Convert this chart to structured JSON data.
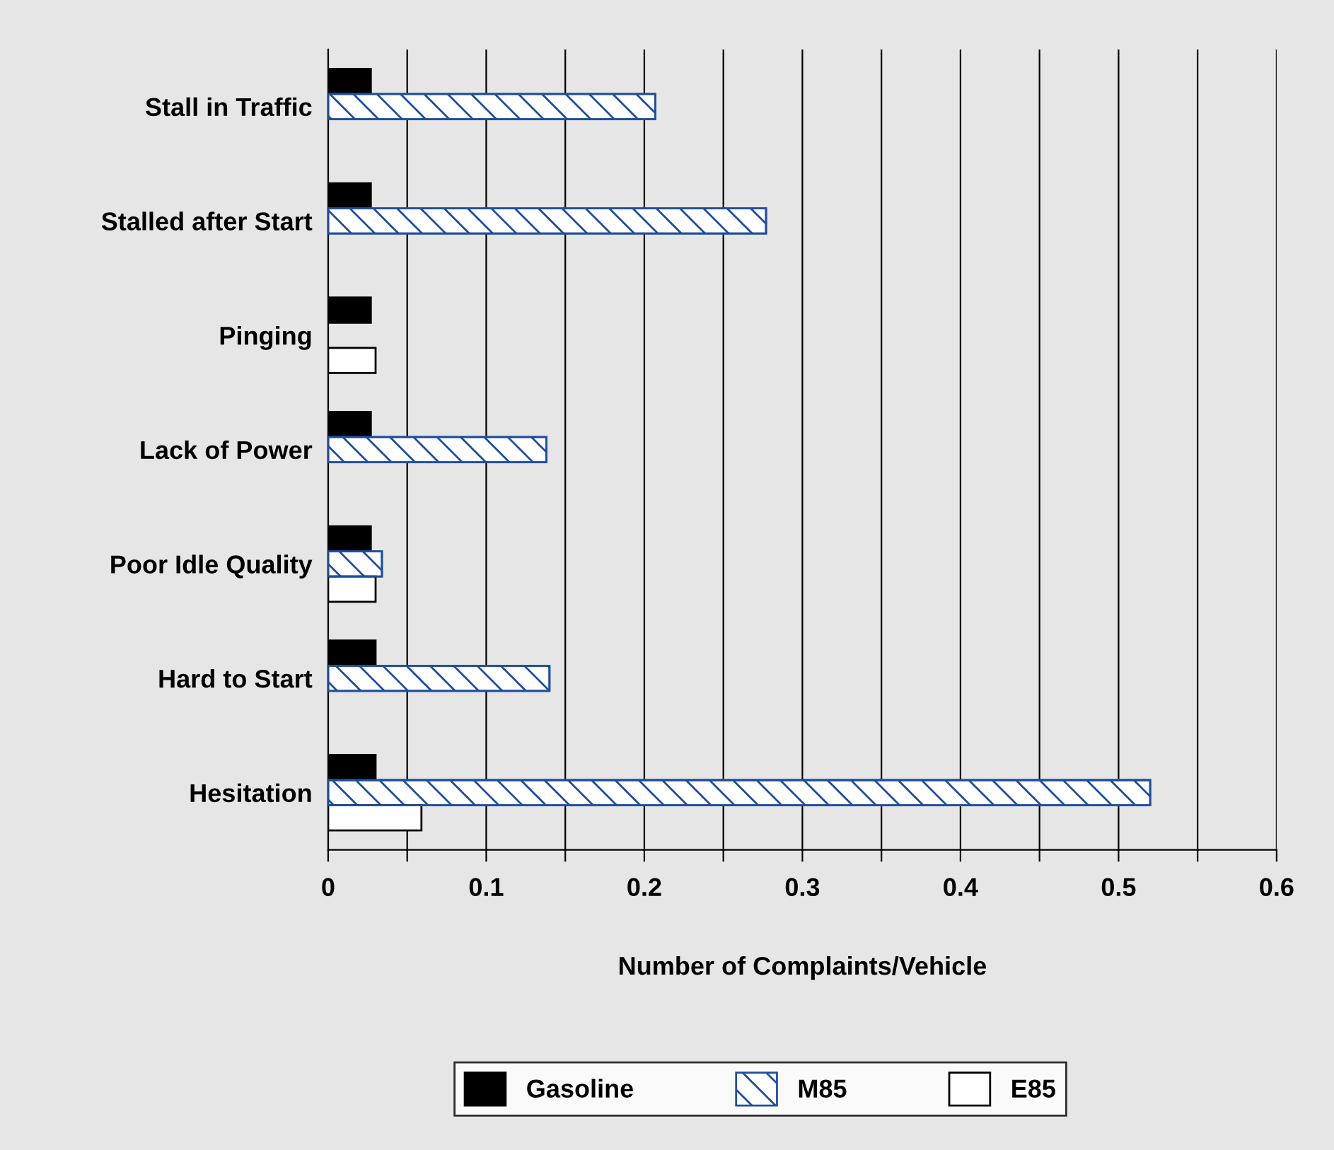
{
  "chart_data": {
    "type": "bar",
    "orientation": "horizontal",
    "xlabel": "Number of Complaints/Vehicle",
    "categories": [
      "Stall in Traffic",
      "Stalled after Start",
      "Pinging",
      "Lack of Power",
      "Poor Idle Quality",
      "Hard to Start",
      "Hesitation"
    ],
    "series": [
      {
        "name": "Gasoline",
        "color": "#000000",
        "values": [
          0.027,
          0.027,
          0.027,
          0.027,
          0.027,
          0.03,
          0.03
        ]
      },
      {
        "name": "M85",
        "color": "#1f4e9c",
        "values": [
          0.207,
          0.277,
          null,
          0.138,
          0.034,
          0.14,
          0.52
        ]
      },
      {
        "name": "E85",
        "color": "#ffffff",
        "values": [
          null,
          null,
          0.03,
          null,
          0.03,
          null,
          0.059
        ]
      }
    ],
    "xlim": [
      0,
      0.6
    ],
    "xticks": [
      0,
      {
        "value": 0.05,
        "label": null
      },
      0.1,
      {
        "value": 0.15,
        "label": null
      },
      0.2,
      {
        "value": 0.25,
        "label": null
      },
      0.3,
      {
        "value": 0.35,
        "label": null
      },
      0.4,
      {
        "value": 0.45,
        "label": null
      },
      0.5,
      {
        "value": 0.55,
        "label": null
      },
      0.6
    ],
    "grid": "x",
    "legend": "bottom"
  }
}
